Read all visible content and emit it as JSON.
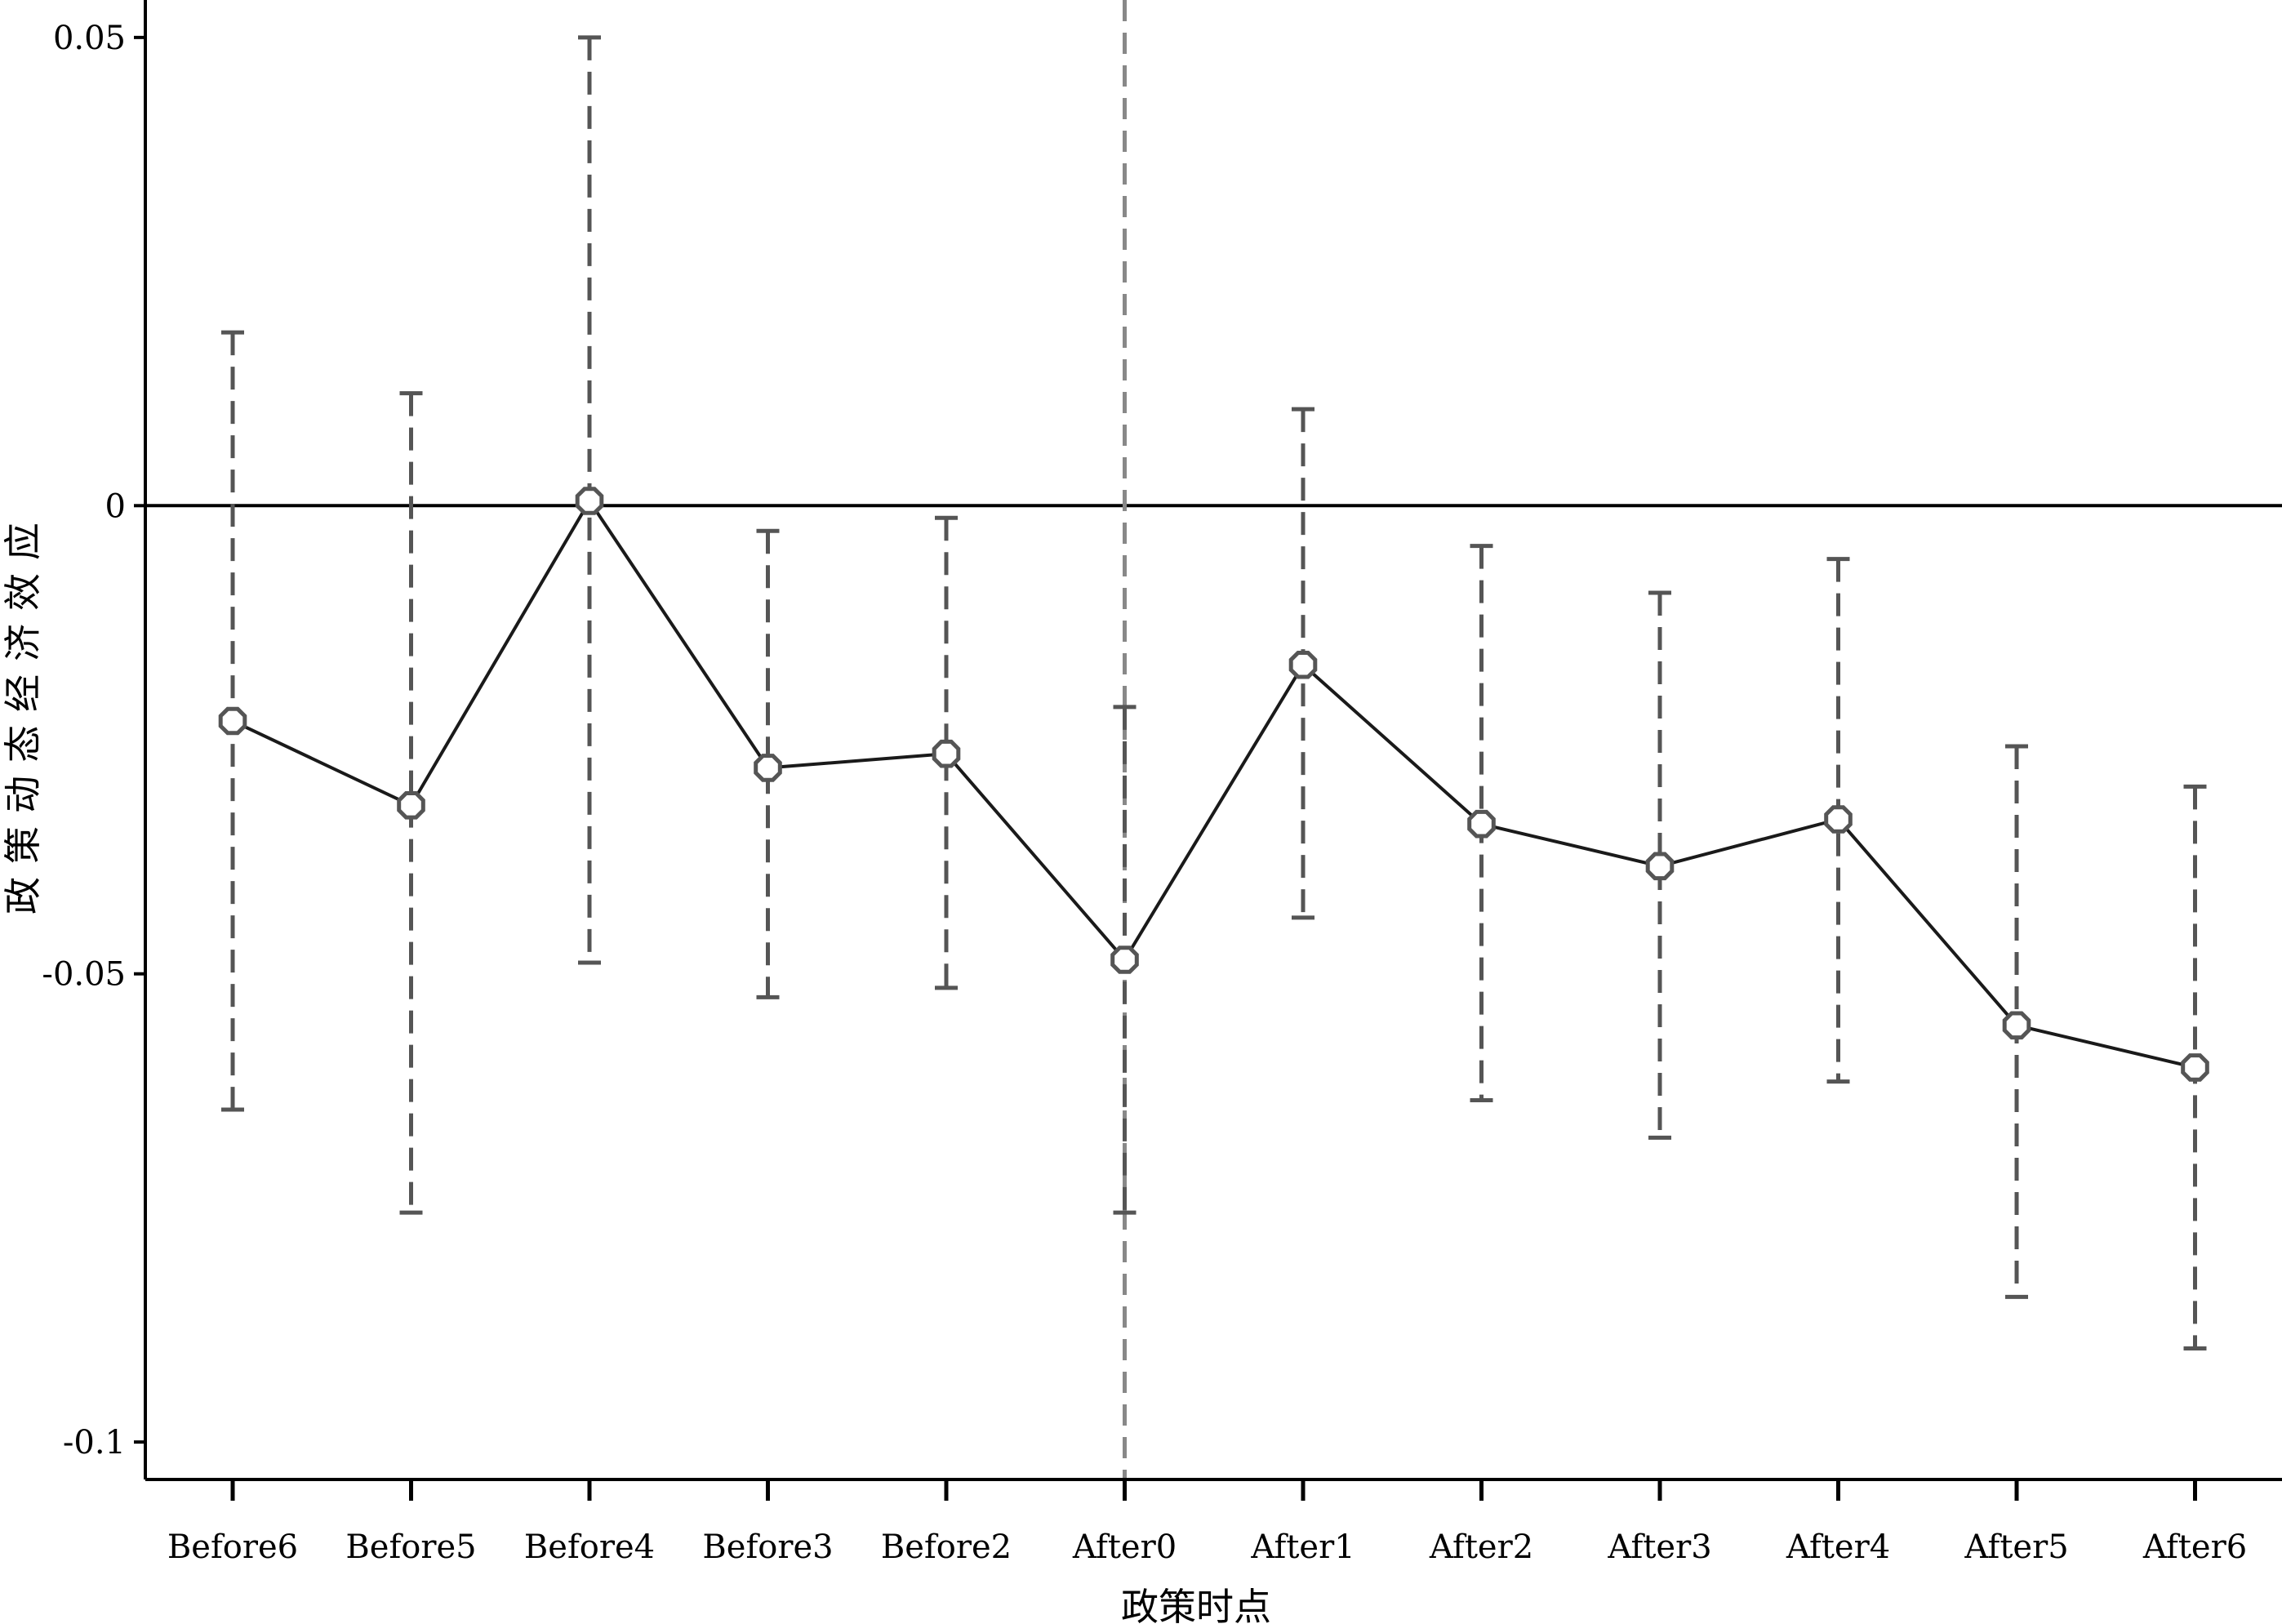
{
  "chart_data": {
    "type": "line",
    "title": "",
    "xlabel": "政策时点",
    "ylabel": "政策动态经济效应",
    "categories": [
      "Before6",
      "Before5",
      "Before4",
      "Before3",
      "Before2",
      "After0",
      "After1",
      "After2",
      "After3",
      "After4",
      "After5",
      "After6"
    ],
    "series": [
      {
        "values": [
          -0.023,
          -0.032,
          0.0005,
          -0.028,
          -0.0265,
          -0.0485,
          -0.017,
          -0.034,
          -0.0385,
          -0.0335,
          -0.0555,
          -0.06
        ],
        "ci_lower": [
          -0.0645,
          -0.0755,
          -0.0488,
          -0.0525,
          -0.0515,
          -0.0755,
          -0.044,
          -0.0635,
          -0.0675,
          -0.0615,
          -0.0845,
          -0.09
        ],
        "ci_upper": [
          0.0185,
          0.012,
          0.05,
          -0.0027,
          -0.0013,
          -0.0215,
          0.0103,
          -0.0043,
          -0.0093,
          -0.0057,
          -0.0257,
          -0.03
        ]
      }
    ],
    "yticks": [
      0.05,
      0,
      -0.05,
      -0.1
    ],
    "ytick_labels": [
      "0.05",
      "0",
      "-0.05",
      "-0.1"
    ],
    "ylim": [
      -0.104,
      0.054
    ],
    "reference_line_y": 0,
    "reference_line_x": "After0",
    "grid": false,
    "legend": "none",
    "colors": {
      "line": "#1a1a1a",
      "marker": "#555555",
      "error_bar": "#555555",
      "event_line": "#888888",
      "axis": "#000000"
    }
  }
}
